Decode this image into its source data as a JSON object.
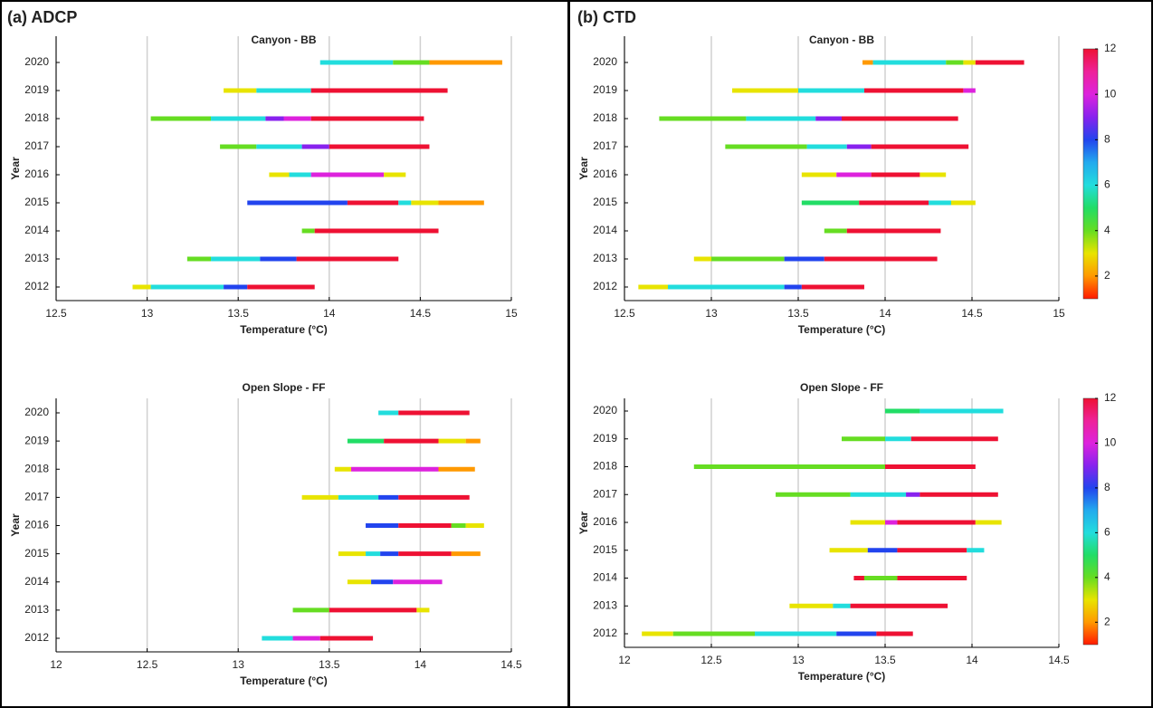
{
  "panel_labels": [
    "(a) ADCP",
    "(b) CTD"
  ],
  "colormap": [
    "#ff1a00",
    "#ff9900",
    "#e8e400",
    "#66dd22",
    "#22dd66",
    "#22dddd",
    "#22aaee",
    "#2244ee",
    "#8822ee",
    "#dd22dd",
    "#ee2299",
    "#ee1133"
  ],
  "chart_data": [
    {
      "type": "range",
      "title": "Canyon - BB",
      "xlabel": "Temperature (°C)",
      "ylabel": "Year",
      "xlim": [
        12.5,
        15
      ],
      "xticks": [
        12.5,
        13,
        13.5,
        14,
        14.5,
        15
      ],
      "grid": true,
      "categories": [
        2012,
        2013,
        2014,
        2015,
        2016,
        2017,
        2018,
        2019,
        2020
      ],
      "segments": [
        [
          [
            12.92,
            13.02,
            3
          ],
          [
            13.02,
            13.42,
            6
          ],
          [
            13.42,
            13.55,
            8
          ],
          [
            13.55,
            13.92,
            12
          ]
        ],
        [
          [
            13.22,
            13.35,
            4
          ],
          [
            13.35,
            13.62,
            6
          ],
          [
            13.62,
            13.82,
            8
          ],
          [
            13.82,
            14.38,
            12
          ]
        ],
        [
          [
            13.85,
            13.92,
            4
          ],
          [
            13.92,
            14.6,
            12
          ]
        ],
        [
          [
            13.55,
            14.1,
            8
          ],
          [
            14.1,
            14.38,
            12
          ],
          [
            14.38,
            14.45,
            6
          ],
          [
            14.45,
            14.6,
            3
          ],
          [
            14.6,
            14.85,
            2
          ]
        ],
        [
          [
            13.67,
            13.78,
            3
          ],
          [
            13.78,
            13.9,
            6
          ],
          [
            13.9,
            14.3,
            10
          ],
          [
            14.3,
            14.42,
            3
          ]
        ],
        [
          [
            13.4,
            13.6,
            4
          ],
          [
            13.6,
            13.85,
            6
          ],
          [
            13.85,
            14.0,
            9
          ],
          [
            14.0,
            14.55,
            12
          ]
        ],
        [
          [
            13.02,
            13.35,
            4
          ],
          [
            13.35,
            13.65,
            6
          ],
          [
            13.65,
            13.75,
            9
          ],
          [
            13.75,
            13.9,
            10
          ],
          [
            13.9,
            14.52,
            12
          ]
        ],
        [
          [
            13.42,
            13.6,
            3
          ],
          [
            13.6,
            13.9,
            6
          ],
          [
            13.9,
            14.65,
            12
          ]
        ],
        [
          [
            13.95,
            14.35,
            6
          ],
          [
            14.35,
            14.55,
            4
          ],
          [
            14.55,
            14.95,
            2
          ]
        ]
      ]
    },
    {
      "type": "range",
      "title": "Open Slope - FF",
      "xlabel": "Temperature (°C)",
      "ylabel": "Year",
      "xlim": [
        12,
        14.5
      ],
      "xticks": [
        12,
        12.5,
        13,
        13.5,
        14,
        14.5
      ],
      "grid": true,
      "categories": [
        2012,
        2013,
        2014,
        2015,
        2016,
        2017,
        2018,
        2019,
        2020
      ],
      "segments": [
        [
          [
            13.13,
            13.3,
            6
          ],
          [
            13.3,
            13.45,
            10
          ],
          [
            13.45,
            13.74,
            12
          ]
        ],
        [
          [
            13.3,
            13.5,
            4
          ],
          [
            13.5,
            13.98,
            12
          ],
          [
            13.98,
            14.05,
            3
          ]
        ],
        [
          [
            13.6,
            13.73,
            3
          ],
          [
            13.73,
            13.85,
            8
          ],
          [
            13.85,
            14.12,
            10
          ]
        ],
        [
          [
            13.55,
            13.7,
            3
          ],
          [
            13.7,
            13.78,
            6
          ],
          [
            13.78,
            13.88,
            8
          ],
          [
            13.88,
            14.17,
            12
          ],
          [
            14.17,
            14.33,
            2
          ]
        ],
        [
          [
            13.7,
            13.88,
            8
          ],
          [
            13.88,
            14.17,
            12
          ],
          [
            14.17,
            14.25,
            4
          ],
          [
            14.25,
            14.35,
            3
          ]
        ],
        [
          [
            13.35,
            13.55,
            3
          ],
          [
            13.55,
            13.77,
            6
          ],
          [
            13.77,
            13.88,
            8
          ],
          [
            13.88,
            14.27,
            12
          ]
        ],
        [
          [
            13.53,
            13.62,
            3
          ],
          [
            13.62,
            14.1,
            10
          ],
          [
            14.1,
            14.3,
            2
          ]
        ],
        [
          [
            13.6,
            13.8,
            5
          ],
          [
            13.8,
            14.1,
            12
          ],
          [
            14.1,
            14.25,
            3
          ],
          [
            14.25,
            14.33,
            2
          ]
        ],
        [
          [
            13.77,
            13.88,
            6
          ],
          [
            13.88,
            14.27,
            12
          ]
        ]
      ]
    },
    {
      "type": "range",
      "title": "Canyon - BB",
      "xlabel": "Temperature (°C)",
      "ylabel": "Year",
      "xlim": [
        12.5,
        15
      ],
      "xticks": [
        12.5,
        13,
        13.5,
        14,
        14.5,
        15
      ],
      "grid": true,
      "colorbar": {
        "lim": [
          1,
          12
        ],
        "ticks": [
          2,
          4,
          6,
          8,
          10,
          12
        ]
      },
      "categories": [
        2012,
        2013,
        2014,
        2015,
        2016,
        2017,
        2018,
        2019,
        2020
      ],
      "segments": [
        [
          [
            12.58,
            12.75,
            3
          ],
          [
            12.75,
            13.42,
            6
          ],
          [
            13.42,
            13.52,
            8
          ],
          [
            13.52,
            13.88,
            12
          ]
        ],
        [
          [
            12.9,
            13.0,
            3
          ],
          [
            13.0,
            13.42,
            4
          ],
          [
            13.42,
            13.65,
            8
          ],
          [
            13.65,
            14.3,
            12
          ]
        ],
        [
          [
            13.65,
            13.78,
            4
          ],
          [
            13.78,
            14.32,
            12
          ]
        ],
        [
          [
            13.52,
            13.85,
            5
          ],
          [
            13.85,
            14.25,
            12
          ],
          [
            14.25,
            14.38,
            6
          ],
          [
            14.38,
            14.52,
            3
          ]
        ],
        [
          [
            13.52,
            13.72,
            3
          ],
          [
            13.72,
            13.92,
            10
          ],
          [
            13.92,
            14.2,
            12
          ],
          [
            14.2,
            14.35,
            3
          ]
        ],
        [
          [
            13.08,
            13.55,
            4
          ],
          [
            13.55,
            13.78,
            6
          ],
          [
            13.78,
            13.92,
            9
          ],
          [
            13.92,
            14.48,
            12
          ]
        ],
        [
          [
            12.7,
            13.2,
            4
          ],
          [
            13.2,
            13.6,
            6
          ],
          [
            13.6,
            13.75,
            9
          ],
          [
            13.75,
            14.42,
            12
          ]
        ],
        [
          [
            13.12,
            13.5,
            3
          ],
          [
            13.5,
            13.88,
            6
          ],
          [
            13.88,
            14.45,
            12
          ],
          [
            14.45,
            14.52,
            10
          ]
        ],
        [
          [
            13.87,
            13.93,
            2
          ],
          [
            13.93,
            14.35,
            6
          ],
          [
            14.35,
            14.45,
            4
          ],
          [
            14.45,
            14.52,
            3
          ],
          [
            14.52,
            14.8,
            12
          ]
        ]
      ]
    },
    {
      "type": "range",
      "title": "Open Slope - FF",
      "xlabel": "Temperature (°C)",
      "ylabel": "Year",
      "xlim": [
        12,
        14.5
      ],
      "xticks": [
        12,
        12.5,
        13,
        13.5,
        14,
        14.5
      ],
      "grid": true,
      "colorbar": {
        "lim": [
          1,
          12
        ],
        "ticks": [
          2,
          4,
          6,
          8,
          10,
          12
        ]
      },
      "categories": [
        2012,
        2013,
        2014,
        2015,
        2016,
        2017,
        2018,
        2019,
        2020
      ],
      "segments": [
        [
          [
            12.1,
            12.28,
            3
          ],
          [
            12.28,
            12.75,
            4
          ],
          [
            12.75,
            13.22,
            6
          ],
          [
            13.22,
            13.45,
            8
          ],
          [
            13.45,
            13.66,
            12
          ]
        ],
        [
          [
            12.95,
            13.2,
            3
          ],
          [
            13.2,
            13.3,
            6
          ],
          [
            13.3,
            13.86,
            12
          ]
        ],
        [
          [
            13.32,
            13.38,
            12
          ],
          [
            13.38,
            13.57,
            4
          ],
          [
            13.57,
            13.97,
            12
          ]
        ],
        [
          [
            13.18,
            13.4,
            3
          ],
          [
            13.4,
            13.57,
            8
          ],
          [
            13.57,
            13.97,
            12
          ],
          [
            13.97,
            14.07,
            6
          ]
        ],
        [
          [
            13.3,
            13.5,
            3
          ],
          [
            13.5,
            13.57,
            10
          ],
          [
            13.57,
            14.02,
            12
          ],
          [
            14.02,
            14.17,
            3
          ]
        ],
        [
          [
            12.87,
            13.3,
            4
          ],
          [
            13.3,
            13.62,
            6
          ],
          [
            13.62,
            13.7,
            9
          ],
          [
            13.7,
            14.15,
            12
          ]
        ],
        [
          [
            12.4,
            13.5,
            4
          ],
          [
            13.5,
            14.02,
            12
          ]
        ],
        [
          [
            13.25,
            13.5,
            4
          ],
          [
            13.5,
            13.65,
            6
          ],
          [
            13.65,
            14.15,
            12
          ]
        ],
        [
          [
            13.5,
            13.7,
            5
          ],
          [
            13.7,
            14.18,
            6
          ]
        ]
      ]
    }
  ]
}
